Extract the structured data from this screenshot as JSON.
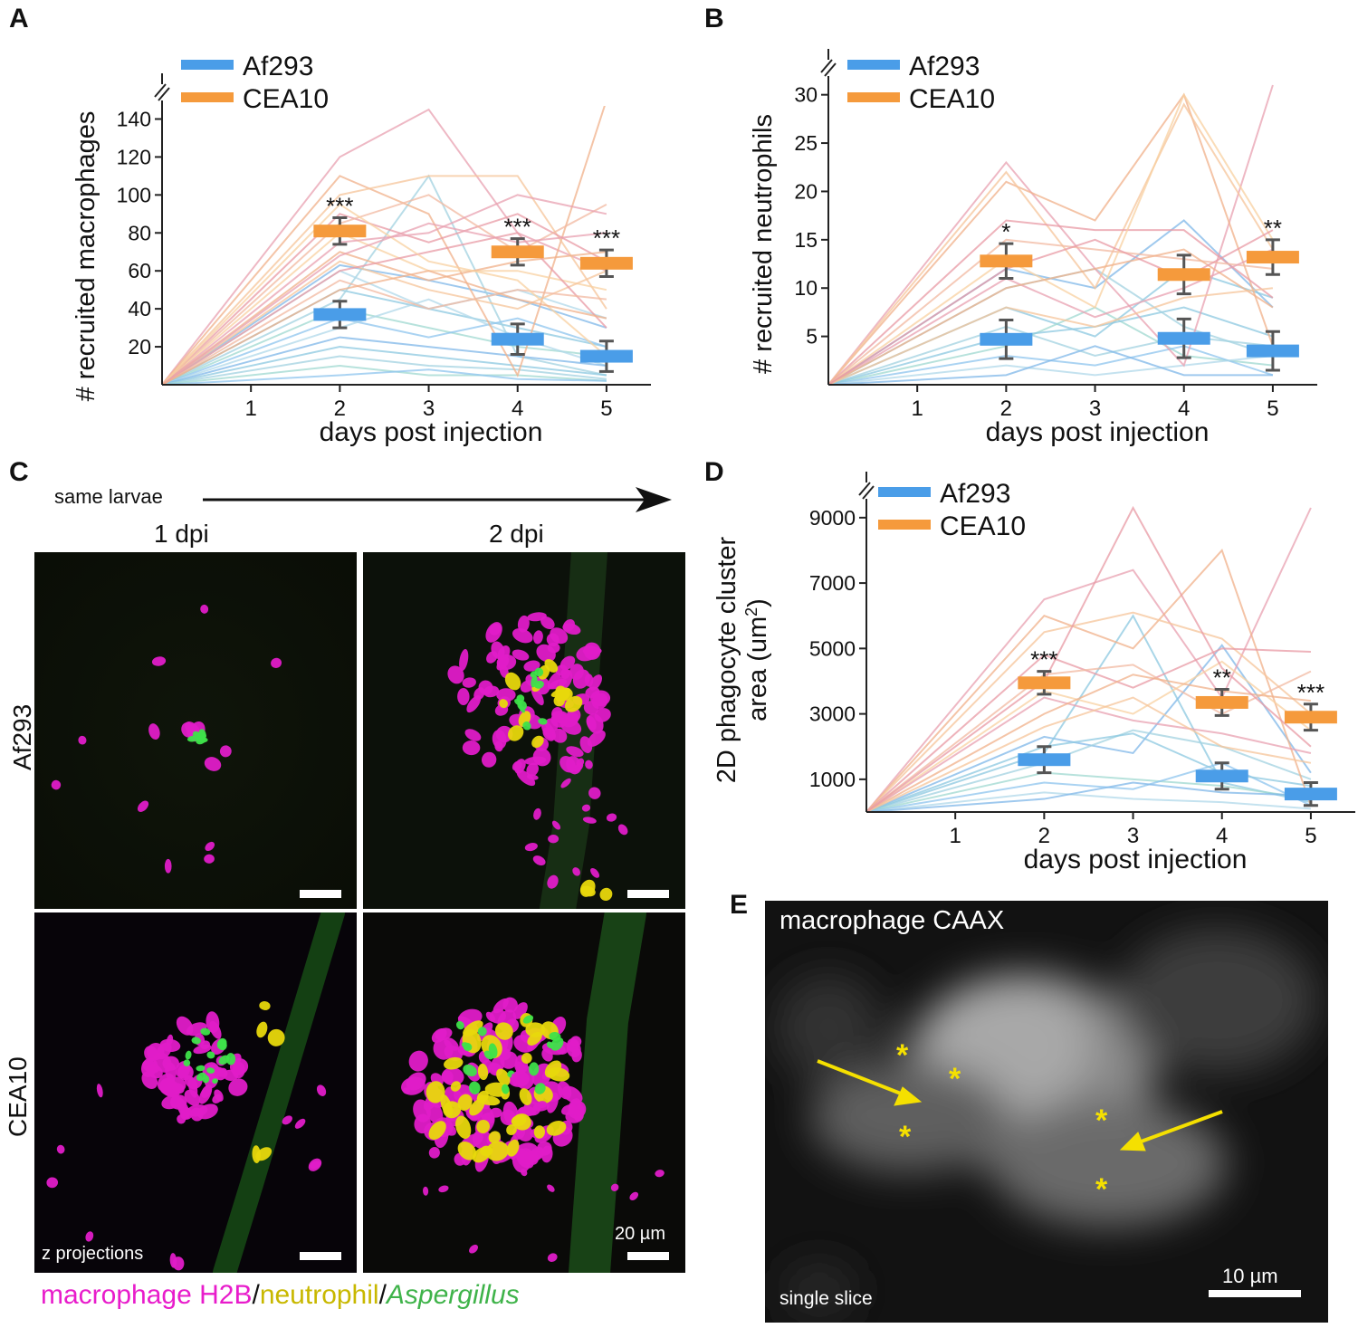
{
  "panels": {
    "A": "A",
    "B": "B",
    "C": "C",
    "D": "D",
    "E": "E"
  },
  "colors": {
    "af293": "#4a9de8",
    "cea10": "#f59a3c",
    "magenta": "#e81ccb",
    "yellow": "#e8d80c",
    "green": "#3fb34a",
    "arrow": "#f5e000"
  },
  "chart_data": [
    {
      "id": "A",
      "type": "line",
      "title": "",
      "xlabel": "days post injection",
      "ylabel": "# recruited macrophages",
      "x_ticks": [
        1,
        2,
        3,
        4,
        5
      ],
      "y_ticks": [
        20,
        40,
        60,
        80,
        100,
        120,
        140
      ],
      "ylim": [
        0,
        145
      ],
      "xlim": [
        0,
        5.5
      ],
      "axis_break": true,
      "legend": [
        "Af293",
        "CEA10"
      ],
      "legend_position": "top-left",
      "summary": [
        {
          "name": "Af293",
          "x": [
            2,
            4,
            5
          ],
          "mean": [
            37,
            24,
            15
          ],
          "err": [
            7,
            8,
            8
          ]
        },
        {
          "name": "CEA10",
          "x": [
            2,
            4,
            5
          ],
          "mean": [
            81,
            70,
            64
          ],
          "err": [
            7,
            7,
            7
          ]
        }
      ],
      "significance": [
        {
          "x": 2,
          "label": "***"
        },
        {
          "x": 4,
          "label": "***"
        },
        {
          "x": 5,
          "label": "***"
        }
      ],
      "individual_series": {
        "Af293": [
          [
            0,
            63,
            55,
            45,
            30
          ],
          [
            0,
            50,
            40,
            30,
            20
          ],
          [
            0,
            45,
            110,
            15,
            5
          ],
          [
            0,
            40,
            30,
            20,
            15
          ],
          [
            0,
            35,
            25,
            35,
            20
          ],
          [
            0,
            30,
            45,
            25,
            10
          ],
          [
            0,
            25,
            20,
            15,
            10
          ],
          [
            0,
            20,
            15,
            10,
            5
          ],
          [
            0,
            15,
            10,
            8,
            3
          ],
          [
            0,
            10,
            5,
            5,
            2
          ],
          [
            0,
            5,
            8,
            3,
            2
          ],
          [
            0,
            60,
            40,
            50,
            35
          ]
        ],
        "CEA10": [
          [
            0,
            120,
            145,
            80,
            60
          ],
          [
            0,
            110,
            90,
            5,
            150
          ],
          [
            0,
            100,
            110,
            110,
            40
          ],
          [
            0,
            90,
            75,
            90,
            65
          ],
          [
            0,
            85,
            100,
            70,
            95
          ],
          [
            0,
            80,
            60,
            60,
            50
          ],
          [
            0,
            75,
            80,
            100,
            90
          ],
          [
            0,
            70,
            55,
            65,
            70
          ],
          [
            0,
            65,
            50,
            40,
            60
          ],
          [
            0,
            60,
            70,
            80,
            30
          ],
          [
            0,
            55,
            40,
            50,
            45
          ],
          [
            0,
            95,
            65,
            55,
            15
          ],
          [
            0,
            68,
            85,
            75,
            80
          ],
          [
            0,
            50,
            60,
            45,
            35
          ]
        ]
      }
    },
    {
      "id": "B",
      "type": "line",
      "title": "",
      "xlabel": "days post injection",
      "ylabel": "# recruited neutrophils",
      "x_ticks": [
        1,
        2,
        3,
        4,
        5
      ],
      "y_ticks": [
        5,
        10,
        15,
        20,
        25,
        30
      ],
      "ylim": [
        0,
        31
      ],
      "xlim": [
        0,
        5.5
      ],
      "axis_break": true,
      "legend": [
        "Af293",
        "CEA10"
      ],
      "legend_position": "top-left",
      "summary": [
        {
          "name": "Af293",
          "x": [
            2,
            4,
            5
          ],
          "mean": [
            4.7,
            4.8,
            3.5
          ],
          "err": [
            2,
            2,
            2
          ]
        },
        {
          "name": "CEA10",
          "x": [
            2,
            4,
            5
          ],
          "mean": [
            12.8,
            11.4,
            13.2
          ],
          "err": [
            1.8,
            2,
            1.8
          ]
        }
      ],
      "significance": [
        {
          "x": 2,
          "label": "*"
        },
        {
          "x": 5,
          "label": "**"
        }
      ],
      "individual_series": {
        "Af293": [
          [
            0,
            12,
            10,
            17,
            8
          ],
          [
            0,
            8,
            5,
            12,
            9
          ],
          [
            0,
            6,
            3,
            5,
            4
          ],
          [
            0,
            4,
            8,
            3,
            2
          ],
          [
            0,
            3,
            2,
            4,
            1
          ],
          [
            0,
            2,
            1,
            2,
            3
          ],
          [
            0,
            1,
            4,
            1,
            1
          ],
          [
            0,
            5,
            6,
            8,
            5
          ],
          [
            0,
            10,
            12,
            6,
            3
          ]
        ],
        "CEA10": [
          [
            0,
            23,
            12,
            2,
            31
          ],
          [
            0,
            21,
            17,
            30,
            4
          ],
          [
            0,
            22,
            10,
            29,
            14
          ],
          [
            0,
            17,
            16,
            16,
            9
          ],
          [
            0,
            15,
            14,
            13,
            12
          ],
          [
            0,
            13,
            8,
            30,
            15
          ],
          [
            0,
            11,
            7,
            10,
            14
          ],
          [
            0,
            10,
            12,
            14,
            8
          ],
          [
            0,
            8,
            6,
            9,
            10
          ],
          [
            0,
            12,
            15,
            11,
            16
          ]
        ]
      }
    },
    {
      "id": "D",
      "type": "line",
      "title": "",
      "xlabel": "days post injection",
      "ylabel": "2D phagocyte cluster area (um²)",
      "ylabel_line1": "2D phagocyte cluster",
      "ylabel_line2": "area (um",
      "ylabel_sup": "2",
      "ylabel_end": ")",
      "x_ticks": [
        1,
        2,
        3,
        4,
        5
      ],
      "y_ticks": [
        1000,
        3000,
        5000,
        7000,
        9000
      ],
      "ylim": [
        0,
        9300
      ],
      "xlim": [
        0,
        5.5
      ],
      "axis_break": true,
      "legend": [
        "Af293",
        "CEA10"
      ],
      "legend_position": "top-left",
      "summary": [
        {
          "name": "Af293",
          "x": [
            2,
            4,
            5
          ],
          "mean": [
            1600,
            1100,
            550
          ],
          "err": [
            400,
            400,
            350
          ]
        },
        {
          "name": "CEA10",
          "x": [
            2,
            4,
            5
          ],
          "mean": [
            3950,
            3350,
            2900
          ],
          "err": [
            350,
            400,
            400
          ]
        }
      ],
      "significance": [
        {
          "x": 2,
          "label": "***"
        },
        {
          "x": 4,
          "label": "**"
        },
        {
          "x": 5,
          "label": "***"
        }
      ],
      "individual_series": {
        "Af293": [
          [
            0,
            2300,
            1800,
            5100,
            1200
          ],
          [
            0,
            1800,
            6000,
            900,
            300
          ],
          [
            0,
            1500,
            2500,
            2000,
            1000
          ],
          [
            0,
            1200,
            1000,
            800,
            400
          ],
          [
            0,
            900,
            700,
            1500,
            200
          ],
          [
            0,
            600,
            400,
            300,
            100
          ],
          [
            0,
            400,
            900,
            600,
            500
          ],
          [
            0,
            2000,
            2400,
            1200,
            800
          ]
        ],
        "CEA10": [
          [
            0,
            6500,
            7400,
            3500,
            9300
          ],
          [
            0,
            6000,
            5000,
            8000,
            200
          ],
          [
            0,
            5500,
            6100,
            5300,
            3000
          ],
          [
            0,
            4800,
            3800,
            5000,
            4900
          ],
          [
            0,
            4200,
            4500,
            3000,
            4300
          ],
          [
            0,
            3700,
            3000,
            4600,
            2500
          ],
          [
            0,
            3500,
            2800,
            2400,
            1800
          ],
          [
            0,
            3000,
            4200,
            3700,
            3400
          ],
          [
            0,
            2600,
            3500,
            2000,
            1500
          ],
          [
            0,
            4000,
            9300,
            4400,
            2000
          ]
        ]
      }
    }
  ],
  "panel_c": {
    "arrow_label": "same larvae",
    "col_labels": [
      "1 dpi",
      "2 dpi"
    ],
    "row_labels": [
      "Af293",
      "CEA10"
    ],
    "scale_label": "20 µm",
    "z_label": "z projections",
    "caption_parts": [
      "macrophage H2B",
      "/",
      "neutrophil",
      "/",
      "Aspergillus"
    ]
  },
  "panel_e": {
    "title": "macrophage CAAX",
    "slice_label": "single slice",
    "scale_label": "10 µm",
    "asterisk": "*"
  }
}
